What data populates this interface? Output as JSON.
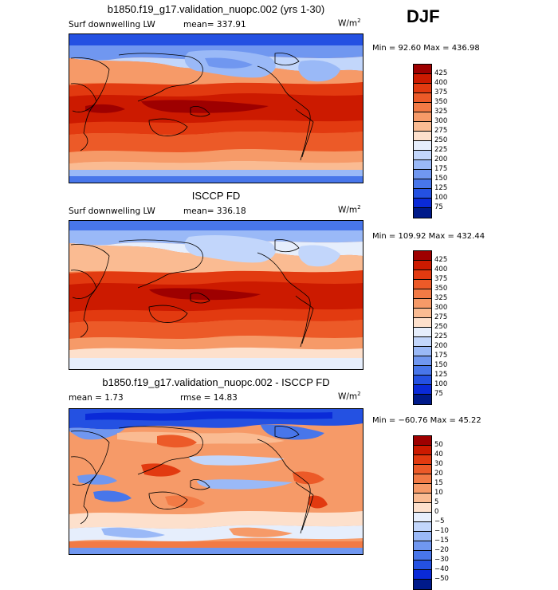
{
  "season": "DJF",
  "panels": [
    {
      "title": "b1850.f19_g17.validation_nuopc.002 (yrs 1-30)",
      "variable": "Surf downwelling LW",
      "mean_text": "mean= 337.91",
      "rmse_text": "",
      "units_base": "W/m",
      "units_exp": "2",
      "stats_text": "Min =  92.60 Max = 436.98",
      "colorbar": {
        "labels": [
          "425",
          "400",
          "375",
          "350",
          "325",
          "300",
          "275",
          "250",
          "225",
          "200",
          "175",
          "150",
          "125",
          "100",
          "75"
        ],
        "colors": [
          "#9e0000",
          "#cc1a00",
          "#e23a10",
          "#ec5a28",
          "#f27a45",
          "#f69a68",
          "#fabb92",
          "#fde0cc",
          "#e6eefc",
          "#c2d6fb",
          "#9ab9f7",
          "#7097f0",
          "#4876ea",
          "#2451e2",
          "#0a2ad8",
          "#001a8a"
        ]
      }
    },
    {
      "title": "ISCCP FD",
      "variable": "Surf downwelling LW",
      "mean_text": "mean= 336.18",
      "rmse_text": "",
      "units_base": "W/m",
      "units_exp": "2",
      "stats_text": "Min = 109.92 Max = 432.44",
      "colorbar": {
        "labels": [
          "425",
          "400",
          "375",
          "350",
          "325",
          "300",
          "275",
          "250",
          "225",
          "200",
          "175",
          "150",
          "125",
          "100",
          "75"
        ],
        "colors": [
          "#9e0000",
          "#cc1a00",
          "#e23a10",
          "#ec5a28",
          "#f27a45",
          "#f69a68",
          "#fabb92",
          "#fde0cc",
          "#e6eefc",
          "#c2d6fb",
          "#9ab9f7",
          "#7097f0",
          "#4876ea",
          "#2451e2",
          "#0a2ad8",
          "#001a8a"
        ]
      }
    },
    {
      "title": "b1850.f19_g17.validation_nuopc.002 - ISCCP FD",
      "variable": "",
      "mean_text": "mean =    1.73",
      "rmse_text": "rmse =   14.83",
      "units_base": "W/m",
      "units_exp": "2",
      "stats_text": "Min = −60.76 Max =  45.22",
      "colorbar": {
        "labels": [
          "50",
          "40",
          "30",
          "20",
          "15",
          "10",
          "5",
          "0",
          "−5",
          "−10",
          "−15",
          "−20",
          "−30",
          "−40",
          "−50"
        ],
        "colors": [
          "#9e0000",
          "#cc1a00",
          "#e23a10",
          "#ec5a28",
          "#f27a45",
          "#f69a68",
          "#fabb92",
          "#fde0cc",
          "#e6eefc",
          "#c2d6fb",
          "#9ab9f7",
          "#7097f0",
          "#4876ea",
          "#2451e2",
          "#0a2ad8",
          "#001a8a"
        ]
      }
    }
  ]
}
